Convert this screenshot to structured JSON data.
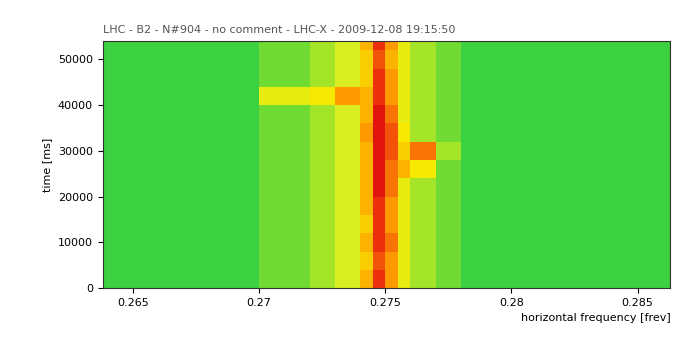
{
  "chart_data": {
    "type": "heatmap",
    "title": "LHC - B2 - N#904 - no comment - LHC-X - 2009-12-08 19:15:50",
    "x_label": "horizontal frequency [frev]",
    "y_label": "time [ms]",
    "xlim": [
      0.2638,
      0.2863
    ],
    "xticks": [
      0.265,
      0.27,
      0.275,
      0.28,
      0.285
    ],
    "ylim": [
      0,
      54000
    ],
    "yticks": [
      0,
      10000,
      20000,
      30000,
      40000,
      50000
    ],
    "x_edges": [
      0.2638,
      0.266,
      0.268,
      0.27,
      0.272,
      0.273,
      0.274,
      0.2745,
      0.275,
      0.2755,
      0.276,
      0.277,
      0.278,
      0.28,
      0.282,
      0.284,
      0.2863
    ],
    "y_edges": [
      0,
      4000,
      8000,
      12000,
      16000,
      20000,
      24000,
      28000,
      32000,
      36000,
      40000,
      44000,
      48000,
      52000,
      54000
    ],
    "zlim": [
      0,
      10
    ],
    "cells": [
      [
        3,
        3,
        3,
        3.5,
        4,
        4.5,
        6.5,
        8.5,
        7,
        5,
        4,
        3.5,
        3,
        3,
        3,
        3
      ],
      [
        3,
        3,
        3,
        3.5,
        4,
        4.5,
        6,
        8,
        7,
        5,
        4,
        3.5,
        3,
        3,
        3,
        3
      ],
      [
        3,
        3,
        3,
        3.5,
        4,
        4.5,
        6.5,
        8.5,
        7.5,
        5,
        4,
        3.5,
        3,
        3,
        3,
        3
      ],
      [
        3,
        3,
        3,
        3.5,
        4,
        4.5,
        6,
        8.5,
        7,
        5,
        4,
        3.5,
        3,
        3,
        3,
        3
      ],
      [
        3,
        3,
        3,
        3.5,
        4,
        4.5,
        6.5,
        8.5,
        7,
        5,
        4,
        3.5,
        3,
        3,
        3,
        3
      ],
      [
        3,
        3,
        3,
        3.5,
        4,
        4.5,
        6.5,
        9,
        7.5,
        5,
        4,
        3.5,
        3,
        3,
        3,
        3
      ],
      [
        3,
        3,
        3,
        3.5,
        4,
        4.5,
        6.5,
        9,
        7.5,
        6.5,
        5.5,
        3.5,
        3,
        3,
        3,
        3
      ],
      [
        3,
        3,
        3,
        3.5,
        4,
        4.5,
        6.5,
        9,
        8,
        6,
        7.5,
        4,
        3,
        3,
        3,
        3
      ],
      [
        3,
        3,
        3,
        3.5,
        4,
        4.5,
        7,
        9,
        8,
        5.5,
        4,
        3.5,
        3,
        3,
        3,
        3
      ],
      [
        3,
        3,
        3,
        3.5,
        4,
        4.5,
        6.5,
        9,
        7.5,
        5,
        4,
        3.5,
        3,
        3,
        3,
        3
      ],
      [
        3,
        3,
        3,
        5,
        5.5,
        7,
        6.5,
        8.5,
        7,
        5,
        4,
        3.5,
        3,
        3,
        3,
        3
      ],
      [
        3,
        3,
        3,
        3.5,
        4,
        4.5,
        6,
        8.5,
        7,
        5,
        4,
        3.5,
        3,
        3,
        3,
        3
      ],
      [
        3,
        3,
        3,
        3.5,
        4,
        4.5,
        6,
        8,
        6.5,
        5,
        4,
        3.5,
        3,
        3,
        3,
        3
      ],
      [
        3,
        3,
        3,
        3.5,
        4,
        4.5,
        6.5,
        8.5,
        7,
        5,
        4,
        3.5,
        3,
        3,
        3,
        3
      ]
    ]
  }
}
